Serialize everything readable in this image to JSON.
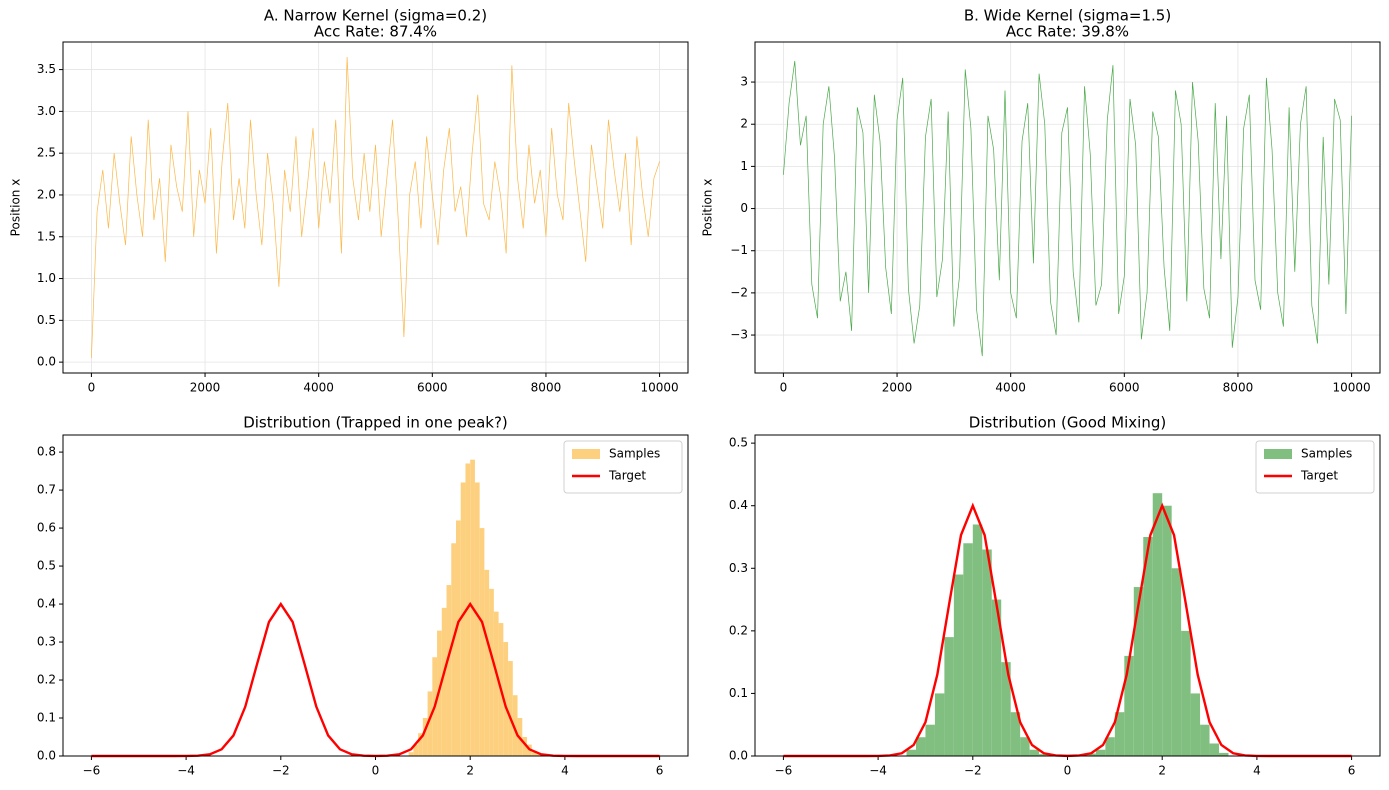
{
  "chart_data": [
    {
      "type": "line",
      "title": "A. Narrow Kernel (sigma=0.2)",
      "subtitle": "Acc Rate: 87.4%",
      "ylabel": "Position x",
      "grid": true,
      "x": [
        0,
        100,
        200,
        300,
        400,
        500,
        600,
        700,
        800,
        900,
        1000,
        1100,
        1200,
        1300,
        1400,
        1500,
        1600,
        1700,
        1800,
        1900,
        2000,
        2100,
        2200,
        2300,
        2400,
        2500,
        2600,
        2700,
        2800,
        2900,
        3000,
        3100,
        3200,
        3300,
        3400,
        3500,
        3600,
        3700,
        3800,
        3900,
        4000,
        4100,
        4200,
        4300,
        4400,
        4500,
        4600,
        4700,
        4800,
        4900,
        5000,
        5100,
        5200,
        5300,
        5400,
        5500,
        5600,
        5700,
        5800,
        5900,
        6000,
        6100,
        6200,
        6300,
        6400,
        6500,
        6600,
        6700,
        6800,
        6900,
        7000,
        7100,
        7200,
        7300,
        7400,
        7500,
        7600,
        7700,
        7800,
        7900,
        8000,
        8100,
        8200,
        8300,
        8400,
        8500,
        8600,
        8700,
        8800,
        8900,
        9000,
        9100,
        9200,
        9300,
        9400,
        9500,
        9600,
        9700,
        9800,
        9900,
        10000
      ],
      "series": [
        {
          "color": "#fbb848",
          "values": [
            0.05,
            1.8,
            2.3,
            1.6,
            2.5,
            1.9,
            1.4,
            2.7,
            2.0,
            1.5,
            2.9,
            1.7,
            2.2,
            1.2,
            2.6,
            2.1,
            1.8,
            3.0,
            1.5,
            2.3,
            1.9,
            2.8,
            1.3,
            2.4,
            3.1,
            1.7,
            2.2,
            1.6,
            2.9,
            2.0,
            1.4,
            2.5,
            1.9,
            0.9,
            2.3,
            1.8,
            2.7,
            1.5,
            2.1,
            2.8,
            1.6,
            2.4,
            1.9,
            2.9,
            1.3,
            3.65,
            2.2,
            1.7,
            2.5,
            1.8,
            2.6,
            1.5,
            2.2,
            2.9,
            1.7,
            0.3,
            2.0,
            2.4,
            1.6,
            2.7,
            2.0,
            1.4,
            2.3,
            2.8,
            1.8,
            2.1,
            1.5,
            2.5,
            3.2,
            1.9,
            1.7,
            2.4,
            2.0,
            1.3,
            3.55,
            2.2,
            1.6,
            2.6,
            1.9,
            2.3,
            1.5,
            2.8,
            2.0,
            1.7,
            3.1,
            2.4,
            1.8,
            1.2,
            2.6,
            2.1,
            1.6,
            2.9,
            2.3,
            1.8,
            2.5,
            1.4,
            2.7,
            2.0,
            1.5,
            2.2,
            2.4
          ]
        }
      ],
      "xlim": [
        -500,
        10500
      ],
      "xticks": [
        0,
        2000,
        4000,
        6000,
        8000,
        10000
      ],
      "ylim": [
        -0.13,
        3.83
      ],
      "yticks": [
        {
          "value": 0,
          "label": "0.0"
        },
        0.5,
        {
          "value": 1,
          "label": "1.0"
        },
        1.5,
        {
          "value": 2,
          "label": "2.0"
        },
        2.5,
        {
          "value": 3,
          "label": "3.0"
        },
        3.5
      ]
    },
    {
      "type": "line",
      "title": "B. Wide Kernel (sigma=1.5)",
      "subtitle": "Acc Rate: 39.8%",
      "ylabel": "Position x",
      "grid": true,
      "x": [
        0,
        100,
        200,
        300,
        400,
        500,
        600,
        700,
        800,
        900,
        1000,
        1100,
        1200,
        1300,
        1400,
        1500,
        1600,
        1700,
        1800,
        1900,
        2000,
        2100,
        2200,
        2300,
        2400,
        2500,
        2600,
        2700,
        2800,
        2900,
        3000,
        3100,
        3200,
        3300,
        3400,
        3500,
        3600,
        3700,
        3800,
        3900,
        4000,
        4100,
        4200,
        4300,
        4400,
        4500,
        4600,
        4700,
        4800,
        4900,
        5000,
        5100,
        5200,
        5300,
        5400,
        5500,
        5600,
        5700,
        5800,
        5900,
        6000,
        6100,
        6200,
        6300,
        6400,
        6500,
        6600,
        6700,
        6800,
        6900,
        7000,
        7100,
        7200,
        7300,
        7400,
        7500,
        7600,
        7700,
        7800,
        7900,
        8000,
        8100,
        8200,
        8300,
        8400,
        8500,
        8600,
        8700,
        8800,
        8900,
        9000,
        9100,
        9200,
        9300,
        9400,
        9500,
        9600,
        9700,
        9800,
        9900,
        10000
      ],
      "series": [
        {
          "color": "#4aa84a",
          "values": [
            0.8,
            2.5,
            3.5,
            1.5,
            2.2,
            -1.8,
            -2.6,
            2.0,
            2.9,
            1.2,
            -2.2,
            -1.5,
            -2.9,
            2.4,
            1.8,
            -2.0,
            2.7,
            1.6,
            -1.4,
            -2.5,
            2.1,
            3.1,
            -1.9,
            -3.2,
            -2.3,
            1.7,
            2.6,
            -2.1,
            -1.2,
            2.3,
            -2.8,
            -1.6,
            3.3,
            1.9,
            -2.4,
            -3.5,
            2.2,
            1.4,
            -1.7,
            2.8,
            -2.0,
            -2.6,
            1.6,
            2.5,
            -1.3,
            3.2,
            2.0,
            -2.2,
            -3.0,
            1.8,
            2.4,
            -1.5,
            -2.7,
            2.9,
            1.3,
            -2.3,
            -1.8,
            2.1,
            3.4,
            -2.5,
            -1.6,
            2.6,
            1.5,
            -3.1,
            -2.0,
            2.3,
            1.7,
            -1.4,
            -2.9,
            2.8,
            2.0,
            -2.2,
            3.0,
            1.6,
            -1.9,
            -2.6,
            2.5,
            -1.2,
            2.2,
            -3.3,
            -2.1,
            1.9,
            2.7,
            -1.7,
            -2.4,
            3.1,
            1.4,
            -2.0,
            -2.8,
            2.4,
            -1.5,
            2.0,
            2.9,
            -2.3,
            -3.2,
            1.7,
            -1.8,
            2.6,
            2.1,
            -2.5,
            2.2
          ]
        }
      ],
      "xlim": [
        -500,
        10500
      ],
      "xticks": [
        0,
        2000,
        4000,
        6000,
        8000,
        10000
      ],
      "ylim": [
        -3.9,
        3.95
      ],
      "yticks": [
        {
          "value": -3,
          "label": "−3"
        },
        {
          "value": -2,
          "label": "−2"
        },
        {
          "value": -1,
          "label": "−1"
        },
        0,
        1,
        2,
        3
      ]
    },
    {
      "type": "histogram",
      "title": "Distribution (Trapped in one peak?)",
      "grid": false,
      "legend": "upper right",
      "bins": [
        0.7,
        0.8,
        0.9,
        1.0,
        1.1,
        1.2,
        1.3,
        1.4,
        1.5,
        1.6,
        1.7,
        1.8,
        1.9,
        2.0,
        2.1,
        2.2,
        2.3,
        2.4,
        2.5,
        2.6,
        2.7,
        2.8,
        2.9,
        3.0,
        3.1,
        3.2,
        3.3,
        3.4,
        3.5
      ],
      "series": [
        {
          "name": "Samples",
          "color": "#fdd07f",
          "values": [
            0.01,
            0.03,
            0.06,
            0.1,
            0.17,
            0.26,
            0.33,
            0.39,
            0.45,
            0.56,
            0.62,
            0.72,
            0.77,
            0.78,
            0.72,
            0.6,
            0.49,
            0.44,
            0.38,
            0.35,
            0.3,
            0.25,
            0.16,
            0.1,
            0.05,
            0.03,
            0.01,
            0.005
          ]
        }
      ],
      "lines": [
        {
          "name": "Target",
          "color": "#ff0000",
          "x": [
            -6,
            -5.75,
            -5.5,
            -5.25,
            -5,
            -4.75,
            -4.5,
            -4.25,
            -4,
            -3.75,
            -3.5,
            -3.25,
            -3,
            -2.75,
            -2.5,
            -2.25,
            -2,
            -1.75,
            -1.5,
            -1.25,
            -1,
            -0.75,
            -0.5,
            -0.25,
            0,
            0.25,
            0.5,
            0.75,
            1,
            1.25,
            1.5,
            1.75,
            2,
            2.25,
            2.5,
            2.75,
            3,
            3.25,
            3.5,
            3.75,
            4,
            4.25,
            4.5,
            4.75,
            5,
            5.25,
            5.5,
            5.75,
            6
          ],
          "values": [
            0,
            0,
            0,
            0,
            0,
            0,
            0,
            0,
            0.0001,
            0.0009,
            0.0044,
            0.0176,
            0.0541,
            0.1299,
            0.2426,
            0.353,
            0.4,
            0.353,
            0.2426,
            0.1299,
            0.0541,
            0.0176,
            0.0044,
            0.0009,
            0.0002,
            0.0009,
            0.0044,
            0.0176,
            0.0541,
            0.1299,
            0.2426,
            0.353,
            0.4,
            0.353,
            0.2426,
            0.1299,
            0.0541,
            0.0176,
            0.0044,
            0.0009,
            0.0001,
            0,
            0,
            0,
            0,
            0,
            0,
            0,
            0
          ]
        }
      ],
      "xlim": [
        -6.6,
        6.6
      ],
      "xticks": [
        {
          "value": -6,
          "label": "−6"
        },
        {
          "value": -4,
          "label": "−4"
        },
        {
          "value": -2,
          "label": "−2"
        },
        0,
        2,
        4,
        6
      ],
      "ylim": [
        0,
        0.845
      ],
      "yticks": [
        {
          "value": 0,
          "label": "0.0"
        },
        0.1,
        0.2,
        0.3,
        0.4,
        0.5,
        0.6,
        0.7,
        0.8
      ]
    },
    {
      "type": "histogram",
      "title": "Distribution (Good Mixing)",
      "grid": false,
      "legend": "upper right",
      "bins": [
        -3.4,
        -3.2,
        -3.0,
        -2.8,
        -2.6,
        -2.4,
        -2.2,
        -2.0,
        -1.8,
        -1.6,
        -1.4,
        -1.2,
        -1.0,
        -0.8,
        -0.6,
        -0.4,
        -0.2,
        0,
        0.2,
        0.4,
        0.6,
        0.8,
        1.0,
        1.2,
        1.4,
        1.6,
        1.8,
        2.0,
        2.2,
        2.4,
        2.6,
        2.8,
        3.0,
        3.2,
        3.4
      ],
      "series": [
        {
          "name": "Samples",
          "color": "#80bf80",
          "values": [
            0.01,
            0.03,
            0.05,
            0.1,
            0.19,
            0.29,
            0.34,
            0.37,
            0.33,
            0.25,
            0.15,
            0.07,
            0.03,
            0.01,
            0.003,
            0.001,
            0.001,
            0.001,
            0.002,
            0.004,
            0.01,
            0.03,
            0.07,
            0.16,
            0.27,
            0.35,
            0.42,
            0.4,
            0.3,
            0.2,
            0.1,
            0.05,
            0.02,
            0.005
          ]
        }
      ],
      "lines": [
        {
          "name": "Target",
          "color": "#ff0000",
          "x": [
            -6,
            -5.75,
            -5.5,
            -5.25,
            -5,
            -4.75,
            -4.5,
            -4.25,
            -4,
            -3.75,
            -3.5,
            -3.25,
            -3,
            -2.75,
            -2.5,
            -2.25,
            -2,
            -1.75,
            -1.5,
            -1.25,
            -1,
            -0.75,
            -0.5,
            -0.25,
            0,
            0.25,
            0.5,
            0.75,
            1,
            1.25,
            1.5,
            1.75,
            2,
            2.25,
            2.5,
            2.75,
            3,
            3.25,
            3.5,
            3.75,
            4,
            4.25,
            4.5,
            4.75,
            5,
            5.25,
            5.5,
            5.75,
            6
          ],
          "values": [
            0,
            0,
            0,
            0,
            0,
            0,
            0,
            0,
            0.0001,
            0.0009,
            0.0044,
            0.0176,
            0.0541,
            0.1299,
            0.2426,
            0.353,
            0.4,
            0.353,
            0.2426,
            0.1299,
            0.0541,
            0.0176,
            0.0044,
            0.0009,
            0.0002,
            0.0009,
            0.0044,
            0.0176,
            0.0541,
            0.1299,
            0.2426,
            0.353,
            0.4,
            0.353,
            0.2426,
            0.1299,
            0.0541,
            0.0176,
            0.0044,
            0.0009,
            0.0001,
            0,
            0,
            0,
            0,
            0,
            0,
            0,
            0
          ]
        }
      ],
      "xlim": [
        -6.6,
        6.6
      ],
      "xticks": [
        {
          "value": -6,
          "label": "−6"
        },
        {
          "value": -4,
          "label": "−4"
        },
        {
          "value": -2,
          "label": "−2"
        },
        0,
        2,
        4,
        6
      ],
      "ylim": [
        0,
        0.513
      ],
      "yticks": [
        {
          "value": 0,
          "label": "0.0"
        },
        0.1,
        0.2,
        0.3,
        0.4,
        0.5
      ]
    }
  ]
}
